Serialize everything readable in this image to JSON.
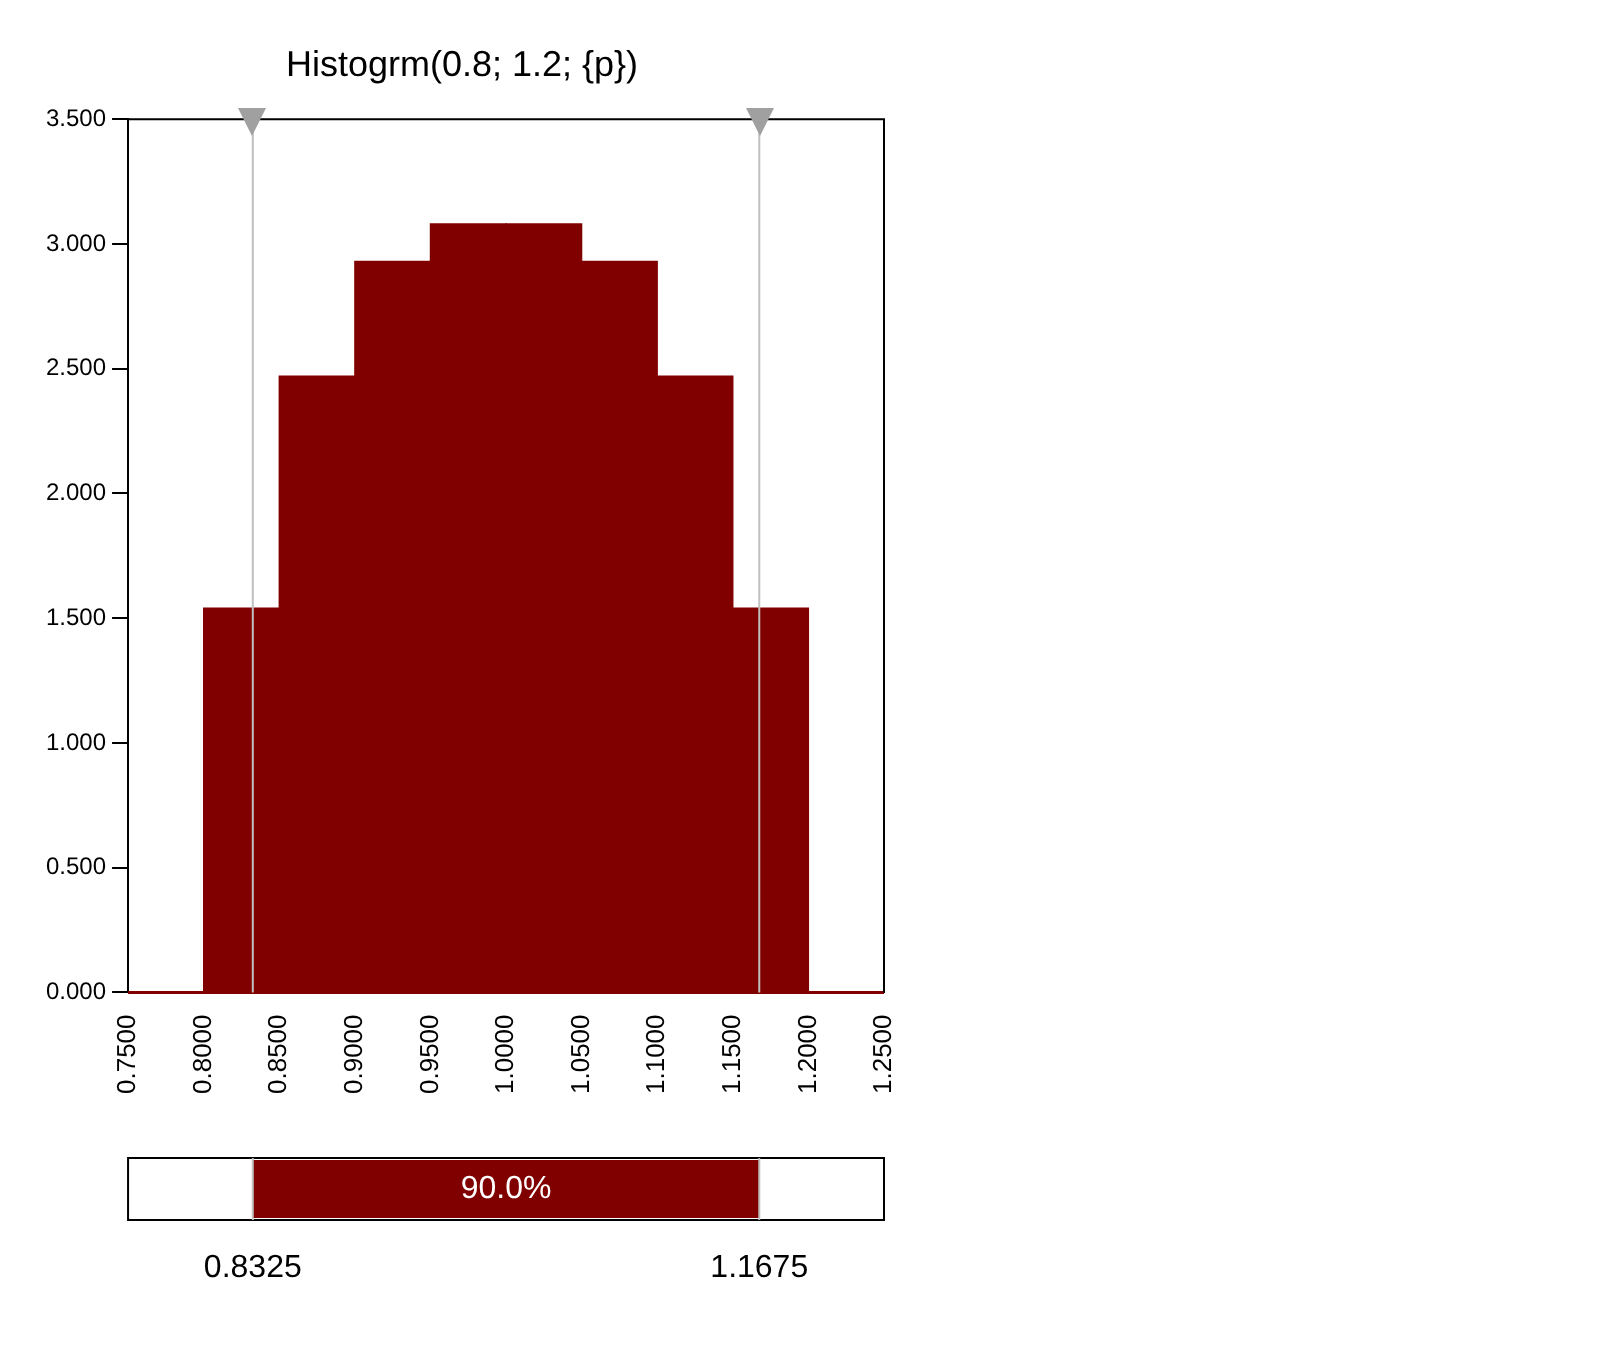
{
  "chart_data": {
    "type": "histogram",
    "title": "Histogrm(0.8; 1.2; {p})",
    "bins": [
      0.75,
      0.8,
      0.85,
      0.9,
      0.95,
      1.0,
      1.05,
      1.1,
      1.15,
      1.2,
      1.25
    ],
    "values": [
      0,
      1.54,
      2.47,
      2.93,
      3.08,
      3.08,
      2.93,
      2.47,
      1.54,
      0
    ],
    "color": "#800000",
    "xlim": [
      0.75,
      1.25
    ],
    "xticks": [
      {
        "value": 0.75,
        "label": "0.7500"
      },
      {
        "value": 0.8,
        "label": "0.8000"
      },
      {
        "value": 0.85,
        "label": "0.8500"
      },
      {
        "value": 0.9,
        "label": "0.9000"
      },
      {
        "value": 0.95,
        "label": "0.9500"
      },
      {
        "value": 1.0,
        "label": "1.0000"
      },
      {
        "value": 1.05,
        "label": "1.0500"
      },
      {
        "value": 1.1,
        "label": "1.1000"
      },
      {
        "value": 1.15,
        "label": "1.1500"
      },
      {
        "value": 1.2,
        "label": "1.2000"
      },
      {
        "value": 1.25,
        "label": "1.2500"
      }
    ],
    "ylim": [
      0,
      3.5
    ],
    "yticks": [
      {
        "value": 0,
        "label": "0.000"
      },
      {
        "value": 0.5,
        "label": "0.500"
      },
      {
        "value": 1,
        "label": "1.000"
      },
      {
        "value": 1.5,
        "label": "1.500"
      },
      {
        "value": 2,
        "label": "2.000"
      },
      {
        "value": 2.5,
        "label": "2.500"
      },
      {
        "value": 3,
        "label": "3.000"
      },
      {
        "value": 3.5,
        "label": "3.500"
      }
    ],
    "ref_lines": [
      {
        "axis": "x",
        "value": 0.8325,
        "color": "#c0c0c0"
      },
      {
        "axis": "x",
        "value": 1.1675,
        "color": "#c0c0c0"
      }
    ],
    "annotations": [
      "90.0%",
      "0.8325",
      "1.1675"
    ],
    "grid": false,
    "legend": false
  }
}
